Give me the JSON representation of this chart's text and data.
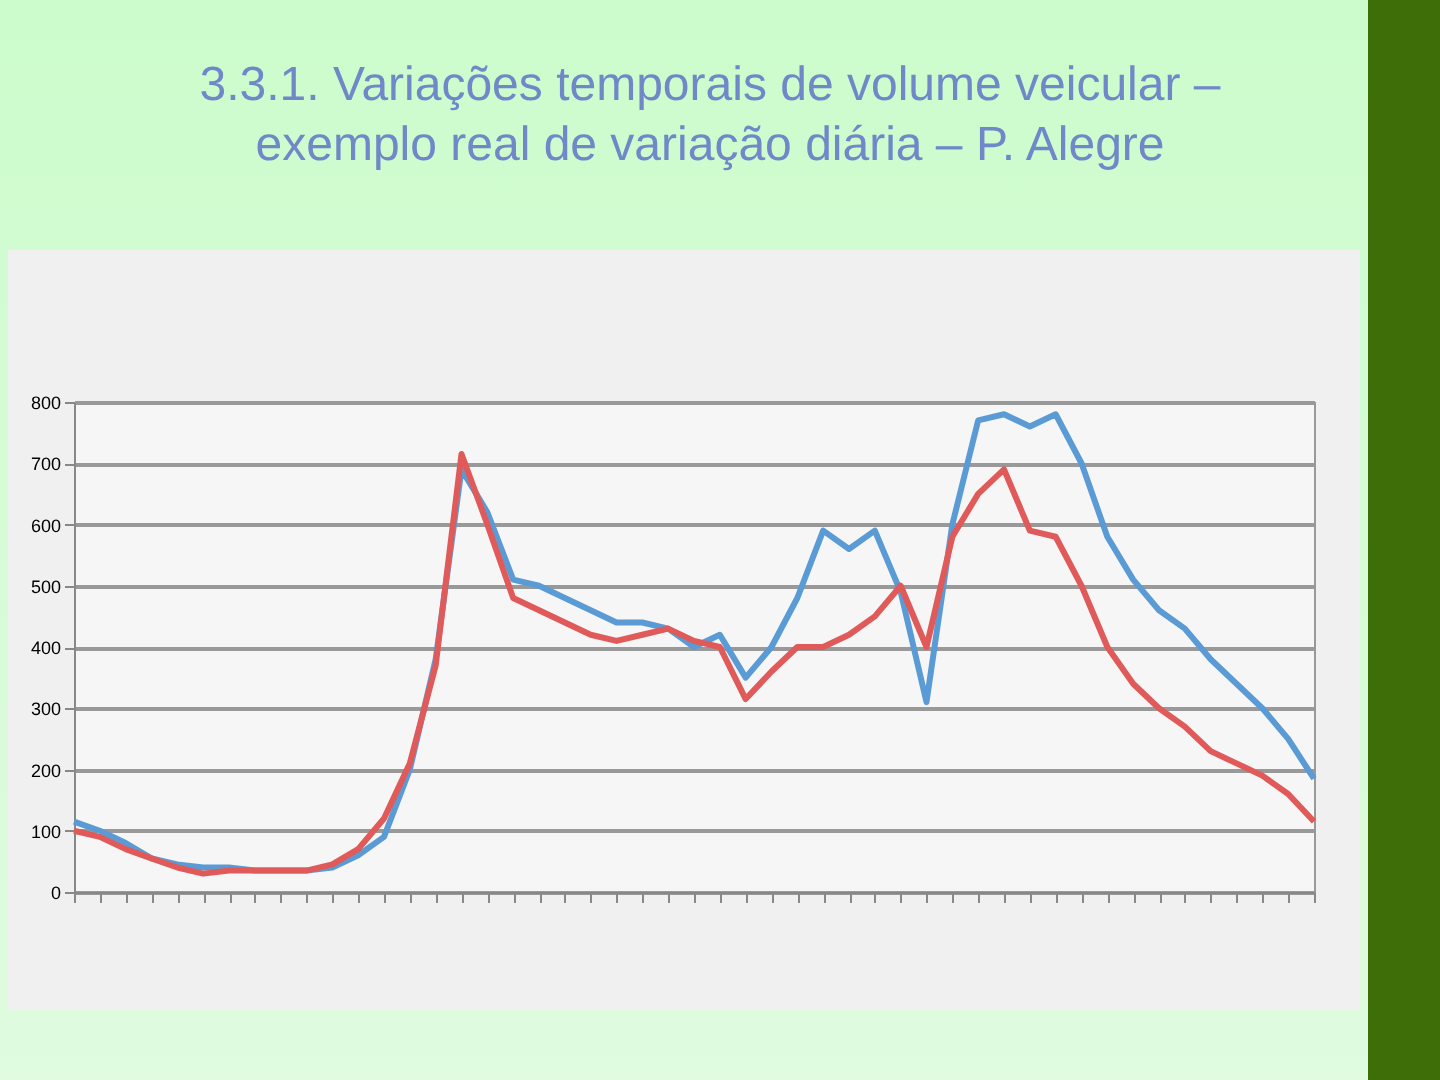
{
  "chart_data": {
    "type": "line",
    "title": "3.3.1. Variações temporais de volume veicular – exemplo real de variação diária – P. Alegre",
    "categories": [
      null,
      null,
      null,
      null,
      null,
      null,
      null,
      null,
      null,
      null,
      null,
      null,
      null,
      null,
      null,
      null,
      null,
      null,
      null,
      null,
      null,
      null,
      null,
      null,
      null,
      null,
      null,
      null,
      null,
      null,
      null,
      null,
      null,
      null,
      null,
      null,
      null,
      null,
      null,
      null,
      null,
      null,
      null,
      null,
      null,
      null,
      null,
      null,
      null
    ],
    "series": [
      {
        "color": "#5b9bd5",
        "values": [
          115,
          100,
          80,
          55,
          45,
          40,
          40,
          35,
          35,
          35,
          40,
          60,
          90,
          200,
          380,
          690,
          620,
          510,
          500,
          480,
          460,
          440,
          440,
          430,
          400,
          420,
          350,
          400,
          480,
          590,
          560,
          590,
          490,
          310,
          600,
          770,
          780,
          760,
          780,
          700,
          580,
          510,
          460,
          430,
          380,
          340,
          300,
          250,
          185
        ]
      },
      {
        "color": "#e05a5a",
        "values": [
          100,
          90,
          70,
          55,
          40,
          30,
          35,
          35,
          35,
          35,
          45,
          70,
          120,
          210,
          370,
          715,
          600,
          480,
          460,
          440,
          420,
          410,
          420,
          430,
          410,
          400,
          315,
          360,
          400,
          400,
          420,
          450,
          500,
          400,
          580,
          650,
          690,
          590,
          580,
          500,
          400,
          340,
          300,
          270,
          230,
          210,
          190,
          160,
          115
        ]
      }
    ],
    "ylim": [
      0,
      800
    ],
    "yticks": [
      0,
      100,
      200,
      300,
      400,
      500,
      600,
      700,
      800
    ],
    "grid": "y",
    "marker": "none",
    "line_style": "solid"
  }
}
